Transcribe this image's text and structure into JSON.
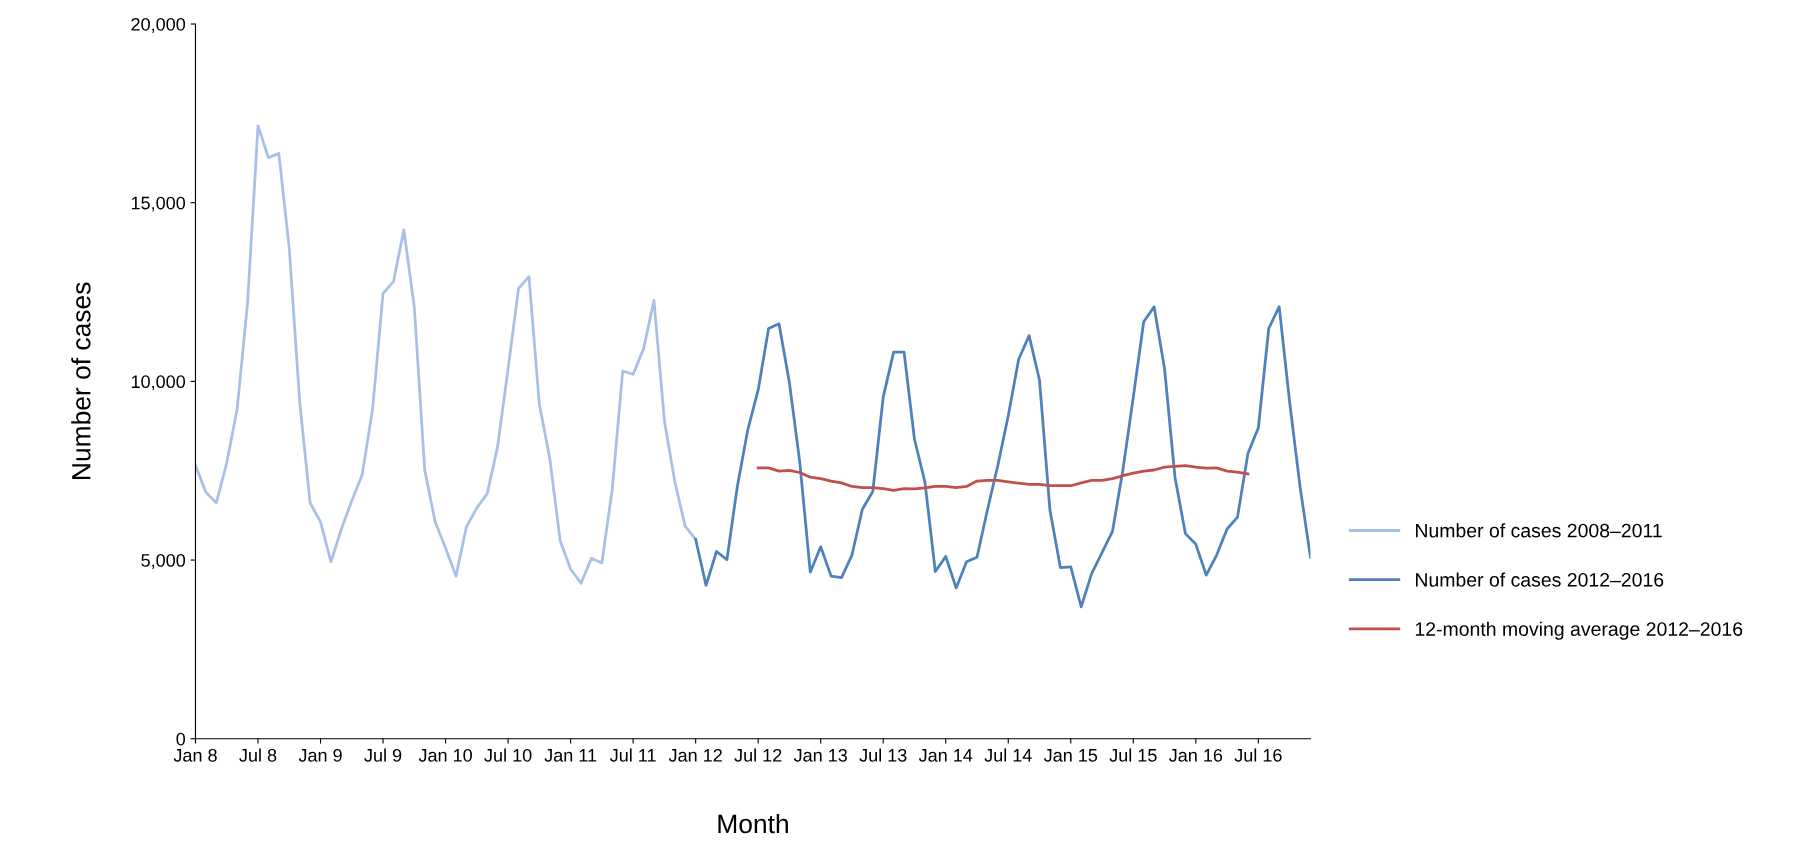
{
  "chart_data": {
    "type": "line",
    "xlabel": "Month",
    "ylabel": "Number of cases",
    "categories": [
      "Jan 8",
      null,
      null,
      null,
      null,
      null,
      "Jul 8",
      null,
      null,
      null,
      null,
      null,
      "Jan 9",
      null,
      null,
      null,
      null,
      null,
      "Jul 9",
      null,
      null,
      null,
      null,
      null,
      "Jan 10",
      null,
      null,
      null,
      null,
      null,
      "Jul 10",
      null,
      null,
      null,
      null,
      null,
      "Jan 11",
      null,
      null,
      null,
      null,
      null,
      "Jul 11",
      null,
      null,
      null,
      null,
      null,
      "Jan 12",
      null,
      null,
      null,
      null,
      null,
      "Jul 12",
      null,
      null,
      null,
      null,
      null,
      "Jan 13",
      null,
      null,
      null,
      null,
      null,
      "Jul 13",
      null,
      null,
      null,
      null,
      null,
      "Jan 14",
      null,
      null,
      null,
      null,
      null,
      "Jul 14",
      null,
      null,
      null,
      null,
      null,
      "Jan 15",
      null,
      null,
      null,
      null,
      null,
      "Jul 15",
      null,
      null,
      null,
      null,
      null,
      "Jan 16",
      null,
      null,
      null,
      null,
      null,
      "Jul 16",
      null,
      null,
      null,
      null,
      null
    ],
    "ylim": [
      0,
      20000
    ],
    "yticks": [
      {
        "value": 0,
        "label": "0"
      },
      {
        "value": 5000,
        "label": "5,000"
      },
      {
        "value": 10000,
        "label": "10,000"
      },
      {
        "value": 15000,
        "label": "15,000"
      },
      {
        "value": 20000,
        "label": "20,000"
      }
    ],
    "grid": false,
    "legend": "right",
    "marker": "none",
    "line_style": "solid",
    "series": [
      {
        "name": "Number of cases 2008–2011",
        "color": "#a9c0e6",
        "values": [
          7650,
          6900,
          6600,
          7720,
          9230,
          12200,
          17150,
          16260,
          16380,
          13720,
          9430,
          6600,
          6070,
          4950,
          5870,
          6660,
          7390,
          9230,
          12460,
          12790,
          14240,
          12070,
          7520,
          6070,
          5340,
          4550,
          5930,
          6460,
          6860,
          8180,
          10350,
          12600,
          12930,
          9360,
          7850,
          5540,
          4750,
          4350,
          5050,
          4920,
          6990,
          10290,
          10200,
          10910,
          12270,
          8900,
          7190,
          5940,
          5580,
          null,
          null,
          null,
          null,
          null,
          null,
          null,
          null,
          null,
          null,
          null,
          null,
          null,
          null,
          null,
          null,
          null,
          null,
          null,
          null,
          null,
          null,
          null,
          null,
          null,
          null,
          null,
          null,
          null,
          null,
          null,
          null,
          null,
          null,
          null,
          null,
          null,
          null,
          null,
          null,
          null,
          null,
          null,
          null,
          null,
          null,
          null,
          null,
          null,
          null,
          null,
          null,
          null,
          null,
          null,
          null,
          null,
          null,
          null
        ]
      },
      {
        "name": "Number of cases 2012–2016",
        "color": "#4f81bd",
        "values": [
          null,
          null,
          null,
          null,
          null,
          null,
          null,
          null,
          null,
          null,
          null,
          null,
          null,
          null,
          null,
          null,
          null,
          null,
          null,
          null,
          null,
          null,
          null,
          null,
          null,
          null,
          null,
          null,
          null,
          null,
          null,
          null,
          null,
          null,
          null,
          null,
          null,
          null,
          null,
          null,
          null,
          null,
          null,
          null,
          null,
          null,
          null,
          null,
          5580,
          4290,
          5240,
          5010,
          7060,
          8640,
          9760,
          11480,
          11610,
          9960,
          7720,
          4660,
          5370,
          4550,
          4510,
          5140,
          6420,
          6920,
          9560,
          10820,
          10820,
          8380,
          7190,
          4680,
          5100,
          4220,
          4950,
          5080,
          6400,
          7650,
          9040,
          10620,
          11280,
          10030,
          6400,
          4790,
          4810,
          3690,
          4620,
          5210,
          5800,
          7520,
          9560,
          11670,
          12090,
          10350,
          7320,
          5740,
          5440,
          4580,
          5140,
          5870,
          6200,
          7980,
          8700,
          11480,
          12090,
          9430,
          7060,
          5080
        ]
      },
      {
        "name": "12-month moving average 2012–2016",
        "color": "#c0504d",
        "values": [
          null,
          null,
          null,
          null,
          null,
          null,
          null,
          null,
          null,
          null,
          null,
          null,
          null,
          null,
          null,
          null,
          null,
          null,
          null,
          null,
          null,
          null,
          null,
          null,
          null,
          null,
          null,
          null,
          null,
          null,
          null,
          null,
          null,
          null,
          null,
          null,
          null,
          null,
          null,
          null,
          null,
          null,
          null,
          null,
          null,
          null,
          null,
          null,
          null,
          null,
          null,
          null,
          null,
          null,
          7580,
          7580,
          7490,
          7510,
          7450,
          7320,
          7280,
          7210,
          7160,
          7060,
          7030,
          7030,
          7000,
          6950,
          7000,
          6990,
          7020,
          7060,
          7060,
          7030,
          7060,
          7210,
          7230,
          7230,
          7190,
          7150,
          7120,
          7120,
          7080,
          7080,
          7080,
          7160,
          7230,
          7230,
          7280,
          7360,
          7430,
          7490,
          7520,
          7600,
          7620,
          7640,
          7600,
          7570,
          7580,
          7490,
          7460,
          7410,
          null,
          null,
          null,
          null,
          null,
          null
        ]
      }
    ]
  }
}
